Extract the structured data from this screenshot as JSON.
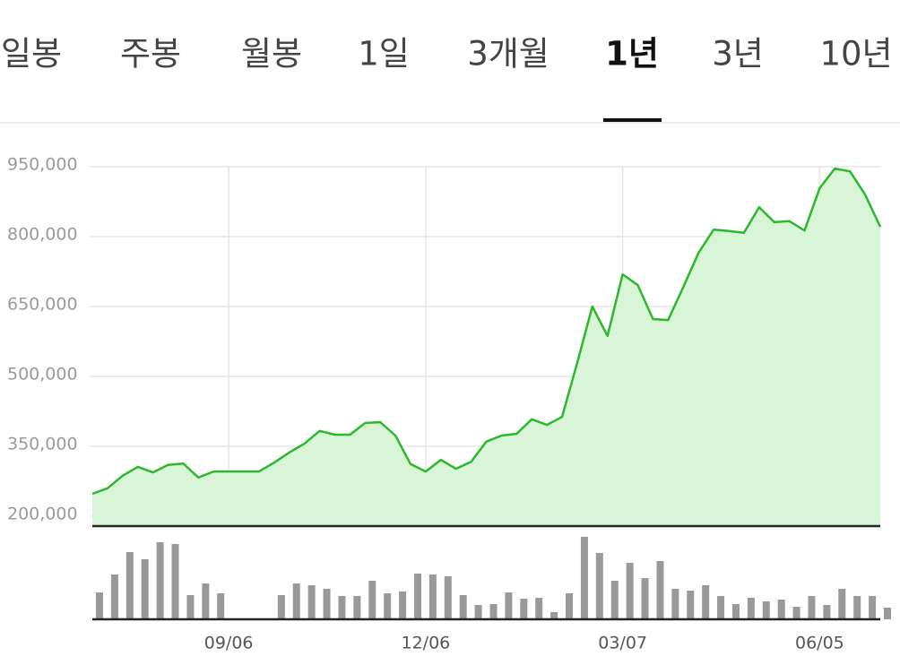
{
  "tabs": {
    "items": [
      "일봉",
      "주봉",
      "월봉",
      "1일",
      "3개월",
      "1년",
      "3년",
      "10년"
    ],
    "selected": 5
  },
  "chart_data": {
    "type": "line",
    "categories": [
      null,
      null,
      null,
      null,
      null,
      null,
      null,
      null,
      null,
      "09/06",
      null,
      null,
      null,
      null,
      null,
      null,
      null,
      null,
      null,
      null,
      null,
      null,
      "12/06",
      null,
      null,
      null,
      null,
      null,
      null,
      null,
      null,
      null,
      null,
      null,
      null,
      "03/07",
      null,
      null,
      null,
      null,
      null,
      null,
      null,
      null,
      null,
      null,
      null,
      null,
      "06/05",
      null,
      null,
      null,
      null
    ],
    "values": [
      248000,
      260000,
      287000,
      306000,
      294000,
      310000,
      313000,
      283000,
      296000,
      296000,
      296000,
      296000,
      315000,
      337000,
      356000,
      383000,
      375000,
      375000,
      400000,
      402000,
      373000,
      312000,
      296000,
      321000,
      302000,
      317000,
      360000,
      373000,
      377000,
      408000,
      396000,
      413000,
      529000,
      650000,
      587000,
      719000,
      696000,
      623000,
      621000,
      692000,
      765000,
      815000,
      812000,
      808000,
      863000,
      831000,
      833000,
      813000,
      904000,
      946000,
      940000,
      890000,
      821000
    ],
    "volume": [
      30,
      50,
      75,
      67,
      86,
      84,
      27,
      40,
      29,
      null,
      null,
      null,
      27,
      40,
      38,
      34,
      26,
      26,
      43,
      29,
      31,
      51,
      50,
      48,
      27,
      16,
      17,
      30,
      23,
      24,
      8,
      29,
      92,
      74,
      43,
      63,
      46,
      65,
      34,
      32,
      38,
      26,
      17,
      24,
      20,
      22,
      14,
      26,
      16,
      34,
      26,
      26,
      13
    ],
    "color": "#2cb82c",
    "fill_color": "#d8f5d8",
    "volume_color": "#999999",
    "ylim": [
      180000,
      950000
    ],
    "yticks": [
      {
        "value": 200000,
        "label": "200,000"
      },
      {
        "value": 350000,
        "label": "350,000"
      },
      {
        "value": 500000,
        "label": "500,000"
      },
      {
        "value": 650000,
        "label": "650,000"
      },
      {
        "value": 800000,
        "label": "800,000"
      },
      {
        "value": 950000,
        "label": "950,000"
      }
    ],
    "grid": true
  }
}
